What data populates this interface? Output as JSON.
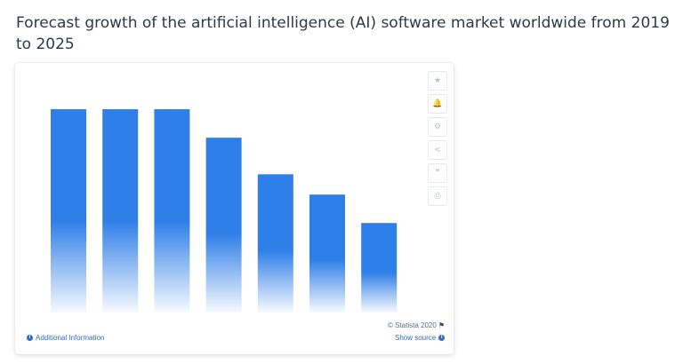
{
  "page": {
    "title": "Forecast growth of the artificial intelligence (AI) software market worldwide from 2019 to 2025"
  },
  "toolbar": {
    "buttons": [
      {
        "icon": "star-icon",
        "glyph": "★"
      },
      {
        "icon": "bell-icon",
        "glyph": "🔔"
      },
      {
        "icon": "gear-icon",
        "glyph": "⚙"
      },
      {
        "icon": "share-icon",
        "glyph": "<"
      },
      {
        "icon": "quote-icon",
        "glyph": "❞"
      },
      {
        "icon": "print-icon",
        "glyph": "⎙"
      }
    ]
  },
  "footer": {
    "credit": "© Statista 2020",
    "additional_info": "Additional Information",
    "show_source": "Show source"
  },
  "colors": {
    "bar": "#2f7fe8",
    "link": "#2b6dc9"
  },
  "chart_data": {
    "type": "bar",
    "categories": [
      "",
      "",
      "",
      "",
      "",
      "",
      ""
    ],
    "values": [
      100,
      100,
      100,
      86,
      68,
      58,
      44
    ],
    "ylim": [
      0,
      100
    ],
    "grid": false
  }
}
